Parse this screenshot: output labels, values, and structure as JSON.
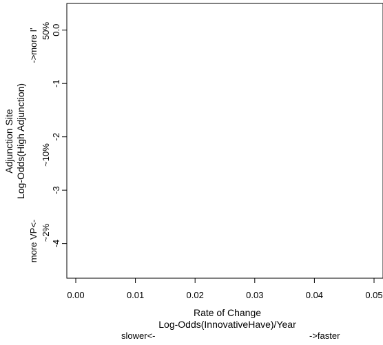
{
  "chart_data": {
    "type": "scatter",
    "title": "",
    "xlabel": "Rate of Change",
    "xlabel2": "Log-Odds(InnovativeHave)/Year",
    "ylabel": "Adjunction Site",
    "ylabel2": "Log-Odds(High Adjunction)",
    "x_ticks": [
      "0.00",
      "0.01",
      "0.02",
      "0.03",
      "0.04",
      "0.05"
    ],
    "x_tick_values": [
      0,
      0.01,
      0.02,
      0.03,
      0.04,
      0.05
    ],
    "y_ticks": [
      "0.0",
      "-1",
      "-2",
      "-3",
      "-4"
    ],
    "y_tick_values": [
      0,
      -1,
      -2,
      -3,
      -4
    ],
    "xlim": [
      -0.0015,
      0.0515
    ],
    "ylim": [
      -4.65,
      0.5
    ],
    "grid": false,
    "series": [],
    "annotations": {
      "x_left": "slower<-",
      "x_right": "->faster",
      "y_pct_top": "50%",
      "y_more_top": "->more I'",
      "y_pct_mid": "~10%",
      "y_more_bottom": "more VP<-",
      "y_pct_bottom": "~2%"
    }
  }
}
